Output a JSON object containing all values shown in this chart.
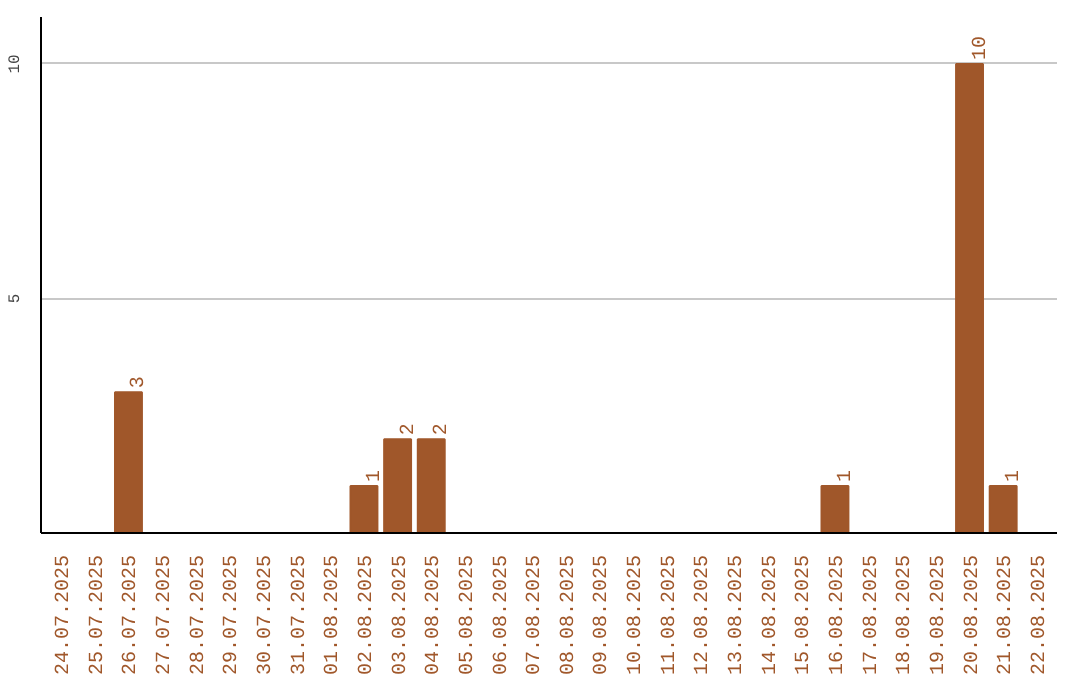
{
  "chart_data": {
    "type": "bar",
    "categories": [
      "24.07.2025",
      "25.07.2025",
      "26.07.2025",
      "27.07.2025",
      "28.07.2025",
      "29.07.2025",
      "30.07.2025",
      "31.07.2025",
      "01.08.2025",
      "02.08.2025",
      "03.08.2025",
      "04.08.2025",
      "05.08.2025",
      "06.08.2025",
      "07.08.2025",
      "08.08.2025",
      "09.08.2025",
      "10.08.2025",
      "11.08.2025",
      "12.08.2025",
      "13.08.2025",
      "14.08.2025",
      "15.08.2025",
      "16.08.2025",
      "17.08.2025",
      "18.08.2025",
      "19.08.2025",
      "20.08.2025",
      "21.08.2025",
      "22.08.2025"
    ],
    "values": [
      0,
      0,
      3,
      0,
      0,
      0,
      0,
      0,
      0,
      1,
      2,
      2,
      0,
      0,
      0,
      0,
      0,
      0,
      0,
      0,
      0,
      0,
      0,
      1,
      0,
      0,
      0,
      10,
      1,
      0
    ],
    "value_labels": [
      null,
      null,
      "3",
      null,
      null,
      null,
      null,
      null,
      null,
      "1",
      "2",
      "2",
      null,
      null,
      null,
      null,
      null,
      null,
      null,
      null,
      null,
      null,
      null,
      "1",
      null,
      null,
      null,
      "10",
      "1",
      null
    ],
    "color": "#a0572a",
    "ylim": [
      0,
      11
    ],
    "yticks": [
      5,
      10
    ],
    "grid": "y"
  }
}
